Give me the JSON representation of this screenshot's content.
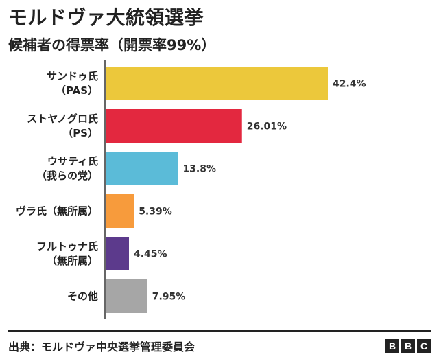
{
  "chart_data": {
    "type": "bar",
    "orientation": "horizontal",
    "title": "モルドヴァ大統領選挙",
    "subtitle": "候補者の得票率（開票率99%）",
    "categories": [
      [
        "サンドゥ氏",
        "（PAS）"
      ],
      [
        "ストヤノグロ氏",
        "（PS）"
      ],
      [
        "ウサティ氏",
        "（我らの党）"
      ],
      [
        "ヴラ氏（無所属）"
      ],
      [
        "フルトゥナ氏",
        "（無所属）"
      ],
      [
        "その他"
      ]
    ],
    "values": [
      42.4,
      26.01,
      13.8,
      5.39,
      4.45,
      7.95
    ],
    "value_labels": [
      "42.4%",
      "26.01%",
      "13.8%",
      "5.39%",
      "4.45%",
      "7.95%"
    ],
    "colors": [
      "#ecc83b",
      "#e3283f",
      "#5bbbd8",
      "#f79b3c",
      "#5c3a8c",
      "#a6a6a6"
    ],
    "xlim": [
      0,
      42.4
    ],
    "grid": false
  },
  "footer": {
    "source": "出典：モルドヴァ中央選挙管理委員会",
    "logo": [
      "B",
      "B",
      "C"
    ]
  }
}
